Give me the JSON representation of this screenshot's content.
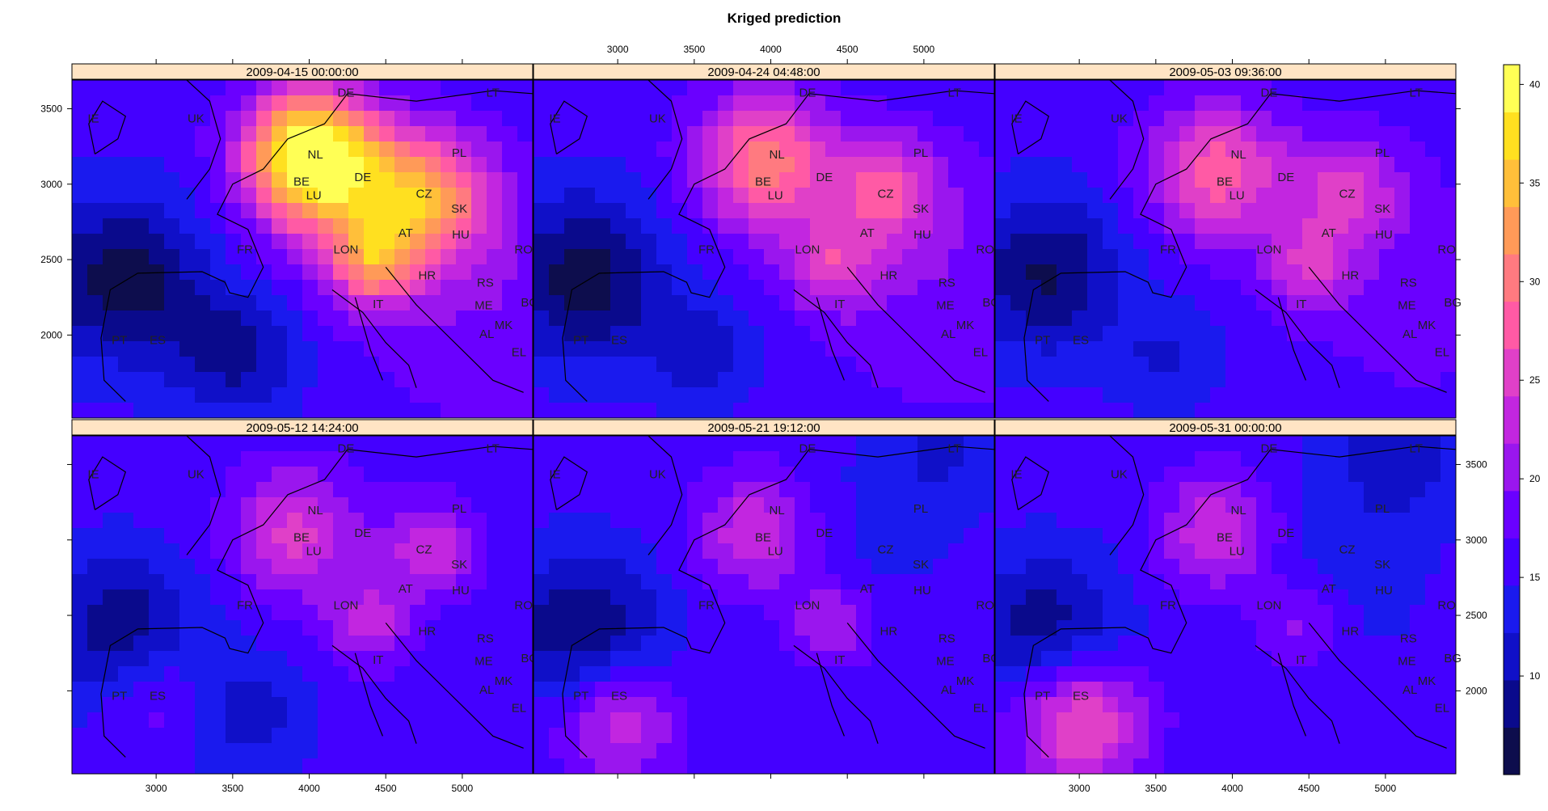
{
  "chart_data": {
    "type": "heatmap",
    "title": "Kriged prediction",
    "panels": [
      {
        "label": "2009-04-15 00:00:00"
      },
      {
        "label": "2009-04-24 04:48:00"
      },
      {
        "label": "2009-05-03 09:36:00"
      },
      {
        "label": "2009-05-12 14:24:00"
      },
      {
        "label": "2009-05-21 19:12:00"
      },
      {
        "label": "2009-05-31 00:00:00"
      }
    ],
    "x_ticks": [
      3000,
      3500,
      4000,
      4500,
      5000
    ],
    "x_tick_labels": [
      "3000",
      "3500",
      "4000",
      "4500",
      "5000"
    ],
    "y_ticks": [
      2000,
      2500,
      3000,
      3500
    ],
    "y_tick_labels": [
      "2000",
      "2500",
      "3000",
      "3500"
    ],
    "xlim": [
      2450,
      5460
    ],
    "ylim": [
      1450,
      3690
    ],
    "colorkey": {
      "ticks": [
        10,
        15,
        20,
        25,
        30,
        35,
        40
      ],
      "tick_labels": [
        "10",
        "15",
        "20",
        "25",
        "30",
        "35",
        "40"
      ],
      "range": [
        5,
        41
      ],
      "colors": [
        "#0d0d4d",
        "#0a0a8c",
        "#1010c8",
        "#1a1aee",
        "#4400ff",
        "#6a00ff",
        "#9a16ee",
        "#c226e0",
        "#e040c8",
        "#ff5aa5",
        "#ff7a80",
        "#ff9a58",
        "#ffbf3a",
        "#ffe020",
        "#ffff55"
      ]
    },
    "country_labels": [
      {
        "code": "IE",
        "x": 2590,
        "y": 3410
      },
      {
        "code": "UK",
        "x": 3260,
        "y": 3410
      },
      {
        "code": "DE",
        "x": 4240,
        "y": 3580
      },
      {
        "code": "LT",
        "x": 5200,
        "y": 3580
      },
      {
        "code": "NL",
        "x": 4040,
        "y": 3170
      },
      {
        "code": "PL",
        "x": 4980,
        "y": 3180
      },
      {
        "code": "BE",
        "x": 3950,
        "y": 2990
      },
      {
        "code": "DE",
        "x": 4350,
        "y": 3020
      },
      {
        "code": "LU",
        "x": 4030,
        "y": 2900
      },
      {
        "code": "CZ",
        "x": 4750,
        "y": 2910
      },
      {
        "code": "SK",
        "x": 4980,
        "y": 2810
      },
      {
        "code": "AT",
        "x": 4630,
        "y": 2650
      },
      {
        "code": "HU",
        "x": 4990,
        "y": 2640
      },
      {
        "code": "FR",
        "x": 3580,
        "y": 2540
      },
      {
        "code": "LON",
        "x": 4240,
        "y": 2540
      },
      {
        "code": "RO",
        "x": 5400,
        "y": 2540
      },
      {
        "code": "HR",
        "x": 4770,
        "y": 2370
      },
      {
        "code": "RS",
        "x": 5150,
        "y": 2320
      },
      {
        "code": "IT",
        "x": 4450,
        "y": 2180
      },
      {
        "code": "ME",
        "x": 5140,
        "y": 2170
      },
      {
        "code": "BG",
        "x": 5440,
        "y": 2190
      },
      {
        "code": "MK",
        "x": 5270,
        "y": 2040
      },
      {
        "code": "ES",
        "x": 3010,
        "y": 1940
      },
      {
        "code": "PT",
        "x": 2760,
        "y": 1940
      },
      {
        "code": "AL",
        "x": 5160,
        "y": 1980
      },
      {
        "code": "EL",
        "x": 5370,
        "y": 1860
      }
    ],
    "hotspots": [
      [
        {
          "x": 4000,
          "y": 3200,
          "v": 40,
          "r": 300
        },
        {
          "x": 4420,
          "y": 2470,
          "v": 27,
          "r": 200
        },
        {
          "x": 4770,
          "y": 2910,
          "v": 30,
          "r": 300
        },
        {
          "x": 4300,
          "y": 2900,
          "v": 23,
          "r": 400
        },
        {
          "x": 2780,
          "y": 2370,
          "v": 6,
          "r": 380
        },
        {
          "x": 3520,
          "y": 1870,
          "v": 9,
          "r": 300
        },
        {
          "x": 5200,
          "y": 2200,
          "v": 19,
          "r": 600
        }
      ],
      [
        {
          "x": 3950,
          "y": 3150,
          "v": 30,
          "r": 320
        },
        {
          "x": 4400,
          "y": 2460,
          "v": 24,
          "r": 220
        },
        {
          "x": 4750,
          "y": 2960,
          "v": 26,
          "r": 260
        },
        {
          "x": 2780,
          "y": 2380,
          "v": 6,
          "r": 380
        },
        {
          "x": 3560,
          "y": 1880,
          "v": 11,
          "r": 250
        },
        {
          "x": 5200,
          "y": 2300,
          "v": 19,
          "r": 600
        }
      ],
      [
        {
          "x": 3900,
          "y": 3080,
          "v": 28,
          "r": 320
        },
        {
          "x": 4500,
          "y": 2450,
          "v": 23,
          "r": 200
        },
        {
          "x": 4750,
          "y": 2950,
          "v": 24,
          "r": 260
        },
        {
          "x": 2780,
          "y": 2400,
          "v": 7,
          "r": 360
        },
        {
          "x": 3580,
          "y": 1850,
          "v": 12,
          "r": 250
        },
        {
          "x": 5200,
          "y": 2300,
          "v": 18,
          "r": 600
        }
      ],
      [
        {
          "x": 3900,
          "y": 3050,
          "v": 25,
          "r": 300
        },
        {
          "x": 4400,
          "y": 2450,
          "v": 23,
          "r": 200
        },
        {
          "x": 4800,
          "y": 2950,
          "v": 24,
          "r": 220
        },
        {
          "x": 3000,
          "y": 1970,
          "v": 20,
          "r": 250
        },
        {
          "x": 2780,
          "y": 2400,
          "v": 8,
          "r": 360
        },
        {
          "x": 3600,
          "y": 1850,
          "v": 11,
          "r": 280
        }
      ],
      [
        {
          "x": 3900,
          "y": 3050,
          "v": 24,
          "r": 280
        },
        {
          "x": 4400,
          "y": 2450,
          "v": 22,
          "r": 200
        },
        {
          "x": 3000,
          "y": 1800,
          "v": 24,
          "r": 280
        },
        {
          "x": 4600,
          "y": 3000,
          "v": 14,
          "r": 400
        },
        {
          "x": 5100,
          "y": 3600,
          "v": 12,
          "r": 300
        },
        {
          "x": 2780,
          "y": 2400,
          "v": 7,
          "r": 360
        }
      ],
      [
        {
          "x": 3900,
          "y": 3050,
          "v": 24,
          "r": 280
        },
        {
          "x": 3000,
          "y": 1800,
          "v": 28,
          "r": 300
        },
        {
          "x": 4450,
          "y": 2450,
          "v": 21,
          "r": 200
        },
        {
          "x": 4700,
          "y": 2800,
          "v": 13,
          "r": 400
        },
        {
          "x": 5100,
          "y": 3600,
          "v": 10,
          "r": 300
        },
        {
          "x": 2780,
          "y": 2400,
          "v": 8,
          "r": 360
        }
      ]
    ]
  }
}
